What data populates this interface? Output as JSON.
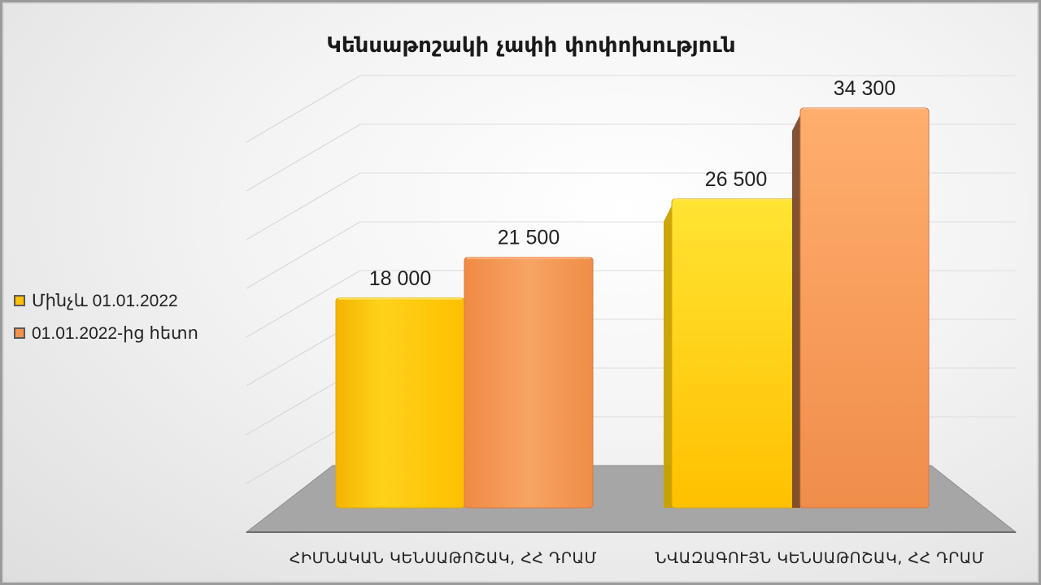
{
  "chart_data": {
    "type": "bar",
    "title": "Կենսաթոշակի չափի փոփոխություն",
    "categories": [
      "ՀԻՄՆԱԿԱՆ ԿԵՆՍԱԹՈՇԱԿ, ՀՀ ԴՐԱՄ",
      "ՆՎԱԶԱԳՈՒՅՆ ԿԵՆՍԱԹՈՇԱԿ, ՀՀ ԴՐԱՄ"
    ],
    "series": [
      {
        "name": "Մինչև 01.01.2022",
        "values": [
          18000,
          26500
        ],
        "value_labels": [
          "18 000",
          "26 500"
        ],
        "color": "#ffc000"
      },
      {
        "name": "01.01.2022-ից հետո",
        "values": [
          21500,
          34300
        ],
        "value_labels": [
          "21 500",
          "34 300"
        ],
        "color": "#f4914d"
      }
    ],
    "ylim": [
      0,
      40000
    ],
    "grid": true,
    "legend": "left",
    "xlabel": "",
    "ylabel": ""
  }
}
